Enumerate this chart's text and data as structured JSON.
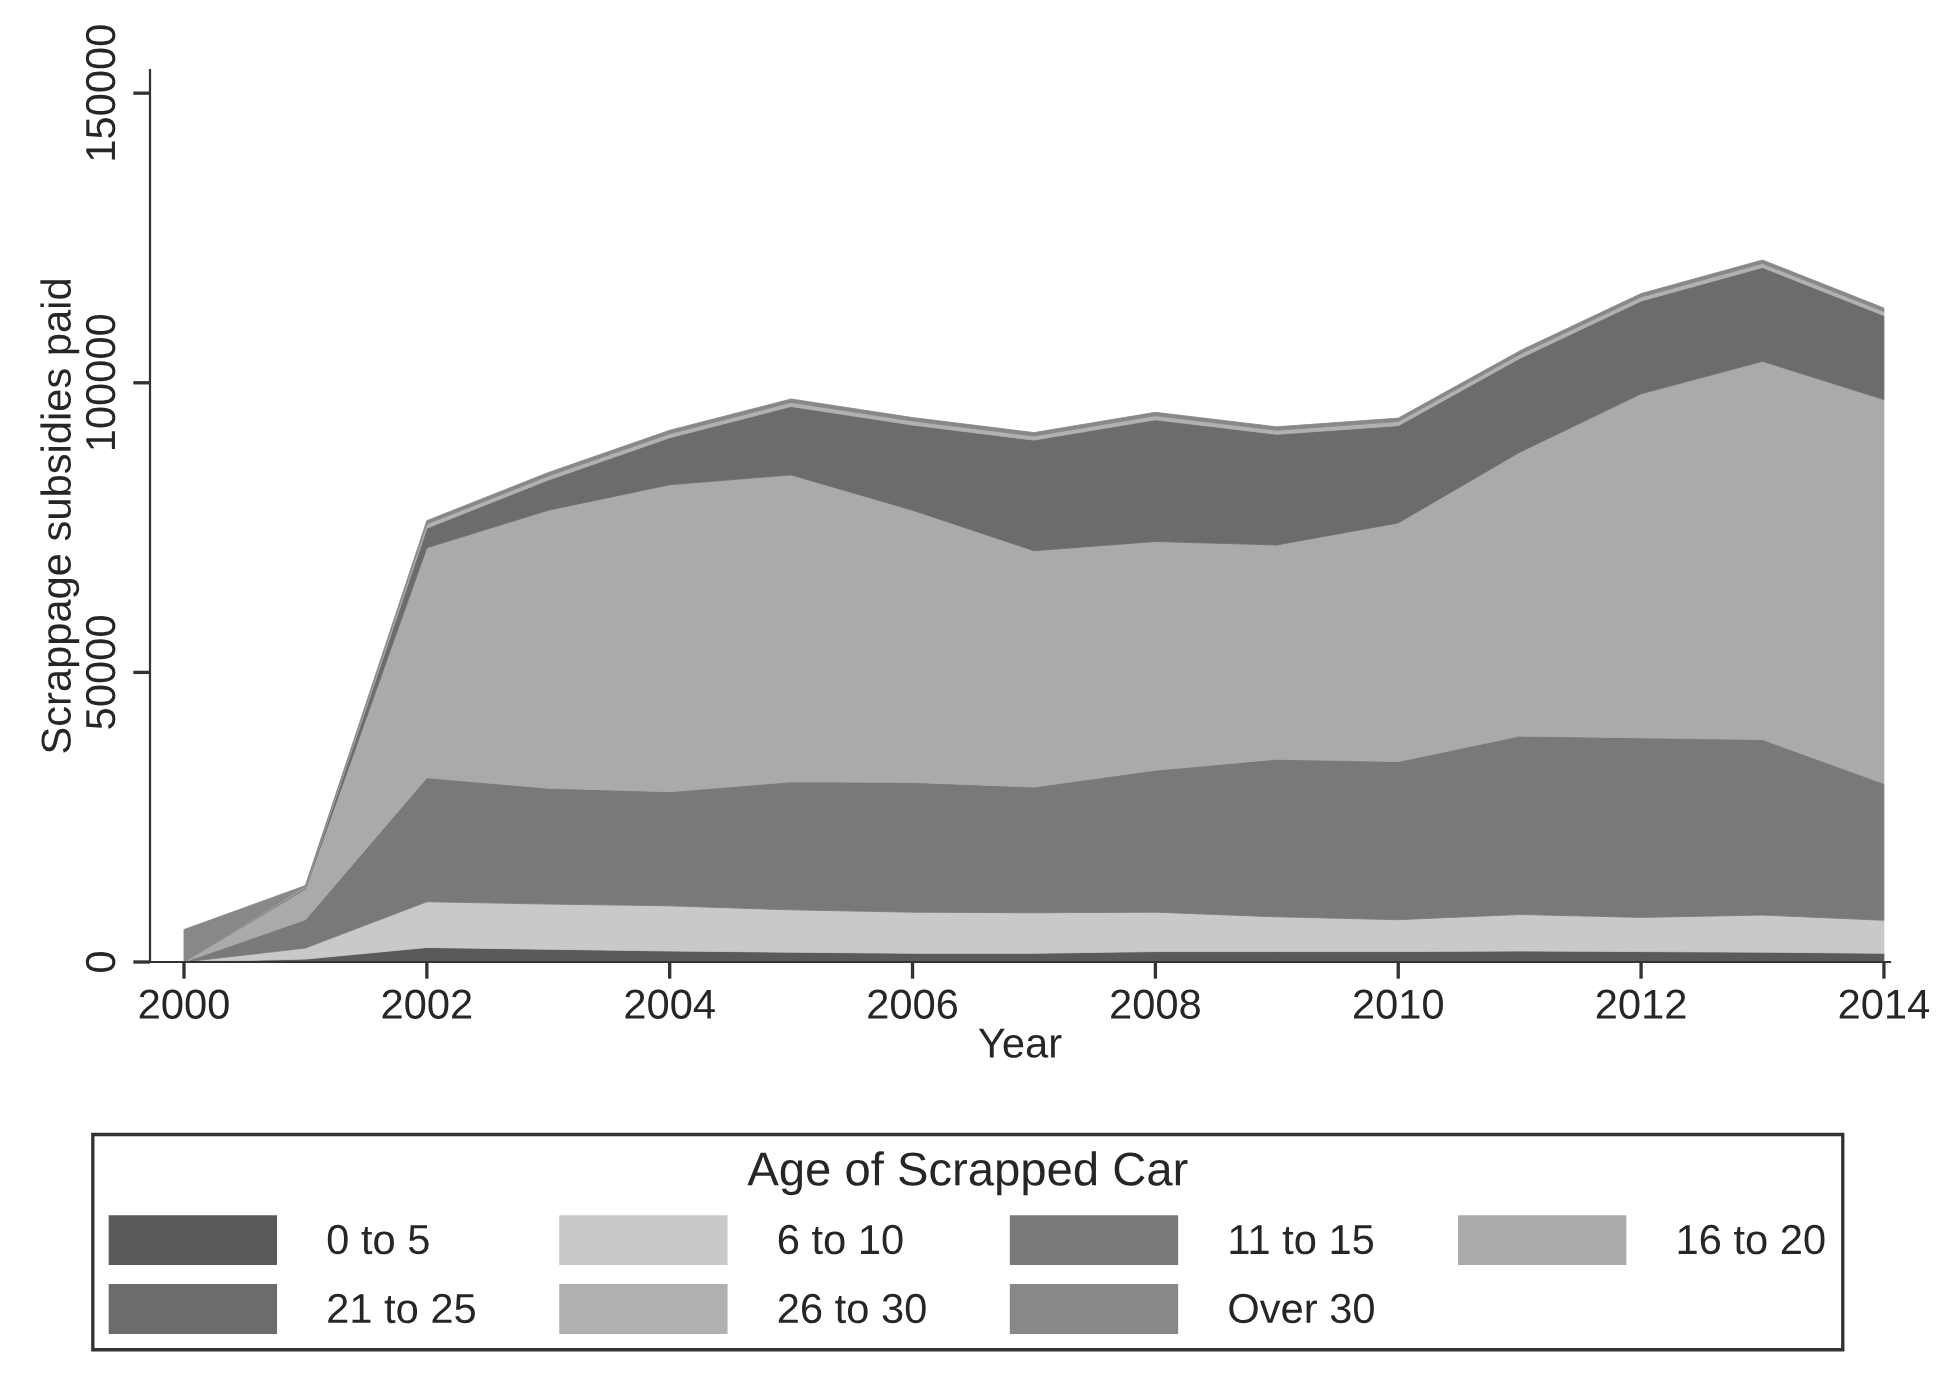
{
  "chart_data": {
    "type": "area",
    "stacked": true,
    "xlabel": "Year",
    "ylabel": "Scrappage subsidies paid",
    "legend_title": "Age of Scrapped Car",
    "legend": "bottom",
    "grid": false,
    "x": [
      2000,
      2001,
      2002,
      2003,
      2004,
      2005,
      2006,
      2007,
      2008,
      2009,
      2010,
      2011,
      2012,
      2013,
      2014
    ],
    "xlim": [
      1999.72,
      2014.05
    ],
    "xticks": [
      2000,
      2002,
      2004,
      2006,
      2008,
      2010,
      2012,
      2014
    ],
    "ylim": [
      0,
      154000
    ],
    "yticks": [
      0,
      50000,
      100000,
      150000
    ],
    "series": [
      {
        "name": "0 to 5",
        "color": "#5a5a5a",
        "values": [
          0,
          500,
          2500,
          2200,
          1900,
          1700,
          1500,
          1500,
          1800,
          1800,
          1800,
          1900,
          1800,
          1700,
          1500
        ]
      },
      {
        "name": "6 to 10",
        "color": "#c8c9cb",
        "values": [
          0,
          1900,
          7900,
          7800,
          7800,
          7300,
          7100,
          7000,
          6800,
          6000,
          5500,
          6300,
          5900,
          6400,
          5700
        ]
      },
      {
        "name": "11 to 15",
        "color": "#78797b",
        "values": [
          0,
          4900,
          21400,
          20000,
          19700,
          22100,
          22400,
          21700,
          24500,
          27200,
          27300,
          30800,
          31000,
          30300,
          23600
        ]
      },
      {
        "name": "16 to 20",
        "color": "#a9aaac",
        "values": [
          0,
          5300,
          39700,
          48000,
          53000,
          53000,
          47000,
          40800,
          39500,
          37000,
          41200,
          49000,
          59400,
          65300,
          66300
        ]
      },
      {
        "name": "21 to 25",
        "color": "#6c6c6c",
        "values": [
          0,
          200,
          3400,
          5200,
          8100,
          11800,
          14700,
          19100,
          21000,
          19100,
          16800,
          16200,
          16000,
          16200,
          14500
        ]
      },
      {
        "name": "26 to 30",
        "color": "#b0b1b3",
        "values": [
          0,
          200,
          700,
          700,
          700,
          700,
          700,
          700,
          700,
          700,
          700,
          700,
          700,
          700,
          700
        ]
      },
      {
        "name": "Over 30",
        "color": "#87888a",
        "values": [
          5600,
          200,
          600,
          600,
          600,
          600,
          600,
          600,
          600,
          600,
          600,
          600,
          600,
          600,
          600
        ]
      }
    ]
  }
}
